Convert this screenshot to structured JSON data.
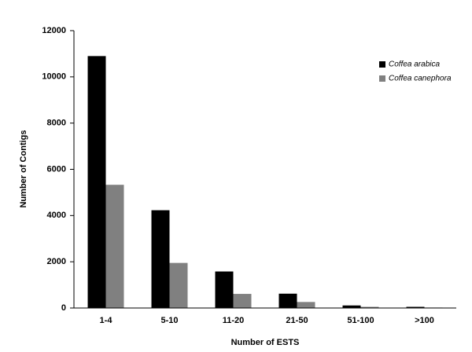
{
  "chart_data": {
    "type": "bar",
    "x_label": "Number of ESTS",
    "y_label": "Number of Contigs",
    "categories": [
      "1-4",
      "5-10",
      "11-20",
      "21-50",
      "51-100",
      ">100"
    ],
    "series": [
      {
        "name": "Coffea arabica",
        "color": "#000000",
        "values": [
          10900,
          4230,
          1580,
          620,
          110,
          50
        ]
      },
      {
        "name": "Coffea canephora",
        "color": "#808080",
        "values": [
          5330,
          1950,
          610,
          260,
          50,
          20
        ]
      }
    ],
    "ylim": [
      0,
      12000
    ],
    "yticks": [
      0,
      2000,
      4000,
      6000,
      8000,
      10000,
      12000
    ],
    "grid": false,
    "legend": "upper right"
  }
}
